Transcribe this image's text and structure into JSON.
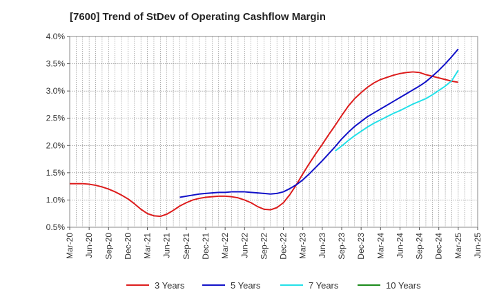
{
  "chart_data": {
    "type": "line",
    "title": "[7600]  Trend of StDev of Operating Cashflow Margin",
    "xlabel": "",
    "ylabel": "",
    "ylim": [
      0.5,
      4.0
    ],
    "y_ticks": [
      "0.5%",
      "1.0%",
      "1.5%",
      "2.0%",
      "2.5%",
      "3.0%",
      "3.5%",
      "4.0%"
    ],
    "x_ticks": [
      "Mar-20",
      "Jun-20",
      "Sep-20",
      "Dec-20",
      "Mar-21",
      "Jun-21",
      "Sep-21",
      "Dec-21",
      "Mar-22",
      "Jun-22",
      "Sep-22",
      "Dec-22",
      "Mar-23",
      "Jun-23",
      "Sep-23",
      "Dec-23",
      "Mar-24",
      "Jun-24",
      "Sep-24",
      "Dec-24",
      "Mar-25",
      "Jun-25"
    ],
    "grid": true,
    "legend_position": "bottom",
    "series": [
      {
        "name": "3 Years",
        "color": "#dd1c1c",
        "x": [
          "Mar-20",
          "Apr-20",
          "May-20",
          "Jun-20",
          "Jul-20",
          "Aug-20",
          "Sep-20",
          "Oct-20",
          "Nov-20",
          "Dec-20",
          "Jan-21",
          "Feb-21",
          "Mar-21",
          "Apr-21",
          "May-21",
          "Jun-21",
          "Jul-21",
          "Aug-21",
          "Sep-21",
          "Oct-21",
          "Nov-21",
          "Dec-21",
          "Jan-22",
          "Feb-22",
          "Mar-22",
          "Apr-22",
          "May-22",
          "Jun-22",
          "Jul-22",
          "Aug-22",
          "Sep-22",
          "Oct-22",
          "Nov-22",
          "Dec-22",
          "Jan-23",
          "Feb-23",
          "Mar-23",
          "Apr-23",
          "May-23",
          "Jun-23",
          "Jul-23",
          "Aug-23",
          "Sep-23",
          "Oct-23",
          "Nov-23",
          "Dec-23",
          "Jan-24",
          "Feb-24",
          "Mar-24",
          "Apr-24",
          "May-24",
          "Jun-24",
          "Jul-24",
          "Aug-24",
          "Sep-24",
          "Oct-24",
          "Nov-24",
          "Dec-24",
          "Jan-25",
          "Feb-25",
          "Mar-25"
        ],
        "values": [
          1.3,
          1.3,
          1.3,
          1.29,
          1.27,
          1.24,
          1.2,
          1.15,
          1.09,
          1.02,
          0.93,
          0.83,
          0.75,
          0.71,
          0.7,
          0.74,
          0.81,
          0.89,
          0.95,
          1.0,
          1.03,
          1.05,
          1.06,
          1.07,
          1.07,
          1.06,
          1.04,
          1.0,
          0.95,
          0.88,
          0.83,
          0.82,
          0.86,
          0.95,
          1.1,
          1.28,
          1.48,
          1.67,
          1.85,
          2.02,
          2.2,
          2.37,
          2.55,
          2.72,
          2.86,
          2.97,
          3.07,
          3.15,
          3.21,
          3.25,
          3.29,
          3.32,
          3.34,
          3.35,
          3.34,
          3.3,
          3.27,
          3.24,
          3.21,
          3.18,
          3.16
        ]
      },
      {
        "name": "5 Years",
        "color": "#1010c8",
        "x": [
          "Aug-21",
          "Sep-21",
          "Oct-21",
          "Nov-21",
          "Dec-21",
          "Jan-22",
          "Feb-22",
          "Mar-22",
          "Apr-22",
          "May-22",
          "Jun-22",
          "Jul-22",
          "Aug-22",
          "Sep-22",
          "Oct-22",
          "Nov-22",
          "Dec-22",
          "Jan-23",
          "Feb-23",
          "Mar-23",
          "Apr-23",
          "May-23",
          "Jun-23",
          "Jul-23",
          "Aug-23",
          "Sep-23",
          "Oct-23",
          "Nov-23",
          "Dec-23",
          "Jan-24",
          "Feb-24",
          "Mar-24",
          "Apr-24",
          "May-24",
          "Jun-24",
          "Jul-24",
          "Aug-24",
          "Sep-24",
          "Oct-24",
          "Nov-24",
          "Dec-24",
          "Jan-25",
          "Feb-25",
          "Mar-25"
        ],
        "values": [
          1.05,
          1.07,
          1.09,
          1.11,
          1.12,
          1.13,
          1.14,
          1.14,
          1.15,
          1.15,
          1.15,
          1.14,
          1.13,
          1.12,
          1.11,
          1.12,
          1.15,
          1.21,
          1.28,
          1.37,
          1.48,
          1.6,
          1.72,
          1.85,
          1.98,
          2.12,
          2.24,
          2.35,
          2.44,
          2.53,
          2.6,
          2.67,
          2.74,
          2.81,
          2.88,
          2.95,
          3.02,
          3.09,
          3.17,
          3.27,
          3.38,
          3.5,
          3.63,
          3.77
        ]
      },
      {
        "name": "7 Years",
        "color": "#22e0e8",
        "x": [
          "Aug-23",
          "Sep-23",
          "Oct-23",
          "Nov-23",
          "Dec-23",
          "Jan-24",
          "Feb-24",
          "Mar-24",
          "Apr-24",
          "May-24",
          "Jun-24",
          "Jul-24",
          "Aug-24",
          "Sep-24",
          "Oct-24",
          "Nov-24",
          "Dec-24",
          "Jan-25",
          "Feb-25",
          "Mar-25"
        ],
        "values": [
          1.9,
          1.99,
          2.09,
          2.18,
          2.26,
          2.34,
          2.41,
          2.47,
          2.53,
          2.59,
          2.64,
          2.7,
          2.76,
          2.81,
          2.86,
          2.93,
          3.01,
          3.09,
          3.19,
          3.38
        ]
      },
      {
        "name": "10 Years",
        "color": "#1a8a1a",
        "x": [],
        "values": []
      }
    ]
  }
}
